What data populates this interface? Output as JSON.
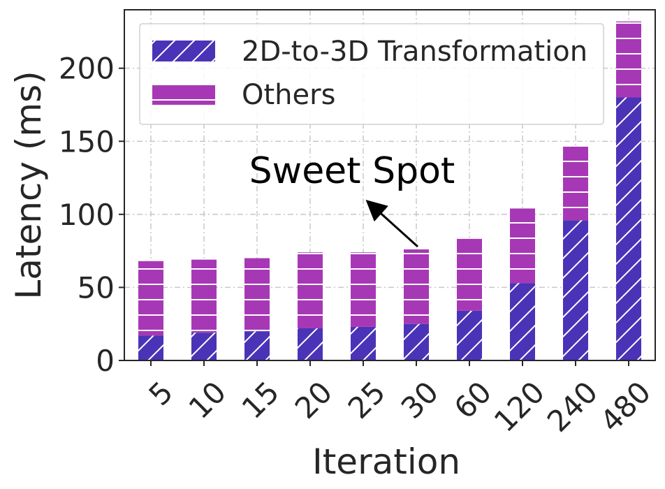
{
  "chart_data": {
    "type": "bar",
    "stacked": true,
    "categories": [
      "5",
      "10",
      "15",
      "20",
      "25",
      "30",
      "60",
      "120",
      "240",
      "480"
    ],
    "series": [
      {
        "name": "2D-to-3D Transformation",
        "color": "#4b33b8",
        "hatch": "diagonal",
        "values": [
          17,
          19,
          20,
          22,
          23,
          25,
          34,
          53,
          96,
          180
        ]
      },
      {
        "name": "Others",
        "color": "#a738b5",
        "hatch": "horizontal",
        "values": [
          51,
          50,
          50,
          52,
          51,
          51,
          50,
          51,
          51,
          52
        ]
      }
    ],
    "xlabel": "Iteration",
    "ylabel": "Latency (ms)",
    "ylim": [
      0,
      240
    ],
    "yticks": [
      0,
      50,
      100,
      150,
      200
    ],
    "grid": true,
    "legend_position": "top-left",
    "annotation": {
      "text": "Sweet Spot",
      "points_to_category": "30"
    }
  }
}
